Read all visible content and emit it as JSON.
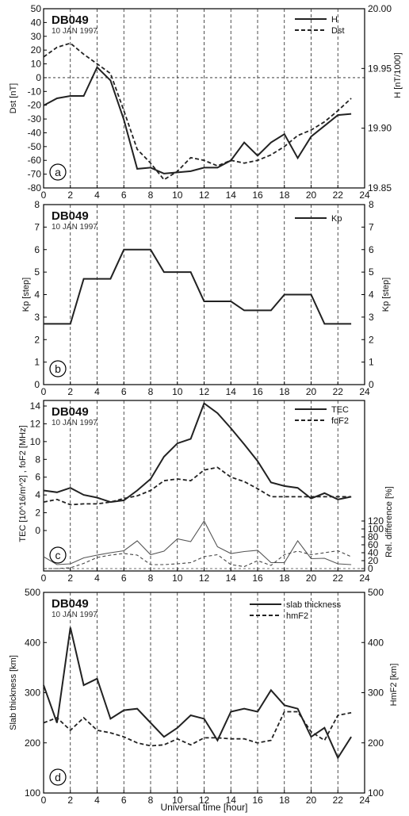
{
  "chart_data": [
    {
      "panel": "a",
      "type": "line",
      "station": "DB049",
      "date": "10 JAN 1997",
      "ylabel": "Dst [nT]",
      "ylabel_right": "H [nT/1000]",
      "ylim": [
        -80,
        50
      ],
      "ylim_right": [
        19.85,
        20.0
      ],
      "xlim": [
        0,
        24
      ],
      "xticks": [
        "0",
        "2",
        "4",
        "6",
        "8",
        "10",
        "12",
        "14",
        "16",
        "18",
        "20",
        "22",
        "24"
      ],
      "yticks": [
        "-80",
        "-70",
        "-60",
        "-50",
        "-40",
        "-30",
        "-20",
        "-10",
        "0",
        "10",
        "20",
        "30",
        "40",
        "50"
      ],
      "yticks_right": [
        "19.85",
        "19.90",
        "19.95",
        "20.00"
      ],
      "hline": 0,
      "series": [
        {
          "name": "H",
          "style": "solid",
          "axis": "right",
          "x": [
            0,
            1,
            2,
            3,
            4,
            5,
            6,
            7,
            8,
            9,
            10,
            11,
            12,
            13,
            14,
            15,
            16,
            17,
            18,
            19,
            20,
            21,
            22,
            23
          ],
          "values": [
            19.919,
            19.925,
            19.927,
            19.927,
            19.951,
            19.94,
            19.907,
            19.866,
            19.867,
            19.862,
            19.863,
            19.864,
            19.867,
            19.867,
            19.873,
            19.888,
            19.877,
            19.888,
            19.895,
            19.875,
            19.893,
            19.902,
            19.911,
            19.912
          ]
        },
        {
          "name": "Dst",
          "style": "dashed",
          "axis": "left",
          "x": [
            0,
            1,
            2,
            3,
            4,
            5,
            6,
            7,
            8,
            9,
            10,
            11,
            12,
            13,
            14,
            15,
            16,
            17,
            18,
            19,
            20,
            21,
            22,
            23
          ],
          "values": [
            15,
            22,
            25,
            17,
            10,
            3,
            -24,
            -52,
            -62,
            -74,
            -68,
            -58,
            -60,
            -64,
            -60,
            -62,
            -60,
            -56,
            -50,
            -42,
            -38,
            -32,
            -24,
            -15
          ]
        }
      ],
      "label": "a"
    },
    {
      "panel": "b",
      "type": "line",
      "station": "DB049",
      "date": "10 JAN 1997",
      "ylabel": "Kp [step]",
      "ylabel_right": "Kp [step]",
      "ylim": [
        0,
        8
      ],
      "xlim": [
        0,
        24
      ],
      "xticks": [
        "0",
        "2",
        "4",
        "6",
        "8",
        "10",
        "12",
        "14",
        "16",
        "18",
        "20",
        "22",
        "24"
      ],
      "yticks": [
        "0",
        "1",
        "2",
        "3",
        "4",
        "5",
        "6",
        "7",
        "8"
      ],
      "series": [
        {
          "name": "Kp",
          "style": "solid",
          "axis": "left",
          "x": [
            0,
            1,
            2,
            3,
            4,
            5,
            6,
            7,
            8,
            9,
            10,
            11,
            12,
            13,
            14,
            15,
            16,
            17,
            18,
            19,
            20,
            21,
            22,
            23
          ],
          "values": [
            2.7,
            2.7,
            2.7,
            4.7,
            4.7,
            4.7,
            6,
            6,
            6,
            5,
            5,
            5,
            3.7,
            3.7,
            3.7,
            3.3,
            3.3,
            3.3,
            4,
            4,
            4,
            2.7,
            2.7,
            2.7
          ]
        }
      ],
      "label": "b"
    },
    {
      "panel": "c",
      "type": "line",
      "station": "DB049",
      "date": "10 JAN 1997",
      "ylabel": "TEC [10^16/m^2] ,  foF2 [MHz]",
      "ylabel_right": "Rel. difference [%]",
      "xlim": [
        0,
        24
      ],
      "xticks": [
        "0",
        "2",
        "4",
        "6",
        "8",
        "10",
        "12",
        "14",
        "16",
        "18",
        "20",
        "22",
        "24"
      ],
      "yticks": [
        "0",
        "2",
        "4",
        "6",
        "8",
        "10",
        "12",
        "14"
      ],
      "yticks_right": [
        "0",
        "20",
        "40",
        "60",
        "80",
        "100",
        "120"
      ],
      "series": [
        {
          "name": "TEC",
          "style": "solid",
          "x": [
            0,
            1,
            2,
            3,
            4,
            5,
            6,
            7,
            8,
            9,
            10,
            11,
            12,
            13,
            14,
            15,
            16,
            17,
            18,
            19,
            20,
            21,
            22,
            23
          ],
          "values": [
            4.5,
            4.3,
            4.8,
            4.0,
            3.7,
            3.2,
            3.4,
            4.5,
            5.8,
            8.3,
            9.8,
            10.3,
            14.3,
            13.2,
            11.5,
            9.7,
            7.8,
            5.4,
            5.0,
            4.8,
            3.6,
            4.2,
            3.5,
            3.8
          ]
        },
        {
          "name": "foF2",
          "style": "dashed",
          "x": [
            0,
            1,
            2,
            3,
            4,
            5,
            6,
            7,
            8,
            9,
            10,
            11,
            12,
            13,
            14,
            15,
            16,
            17,
            18,
            19,
            20,
            21,
            22,
            23
          ],
          "values": [
            3.2,
            3.5,
            2.9,
            3.0,
            3.0,
            3.2,
            3.6,
            3.9,
            4.5,
            5.6,
            5.8,
            5.6,
            6.8,
            7.1,
            6.0,
            5.5,
            4.7,
            3.8,
            3.8,
            3.8,
            3.8,
            3.8,
            3.8,
            3.8
          ]
        },
        {
          "name": "Rel. difference TEC",
          "style": "solid-thin",
          "x": [
            0,
            1,
            2,
            3,
            4,
            5,
            6,
            7,
            8,
            9,
            10,
            11,
            12,
            13,
            14,
            15,
            16,
            17,
            18,
            19,
            20,
            21,
            22,
            23
          ],
          "values": [
            30,
            10,
            12,
            27,
            34,
            40,
            45,
            70,
            35,
            44,
            75,
            68,
            120,
            55,
            38,
            43,
            46,
            15,
            15,
            70,
            25,
            26,
            12,
            10
          ]
        },
        {
          "name": "Rel. difference foF2",
          "style": "dashed-thin",
          "x": [
            0,
            1,
            2,
            3,
            4,
            5,
            6,
            7,
            8,
            9,
            10,
            11,
            12,
            13,
            14,
            15,
            16,
            17,
            18,
            19,
            20,
            21,
            22,
            23
          ],
          "values": [
            0,
            0,
            2,
            13,
            28,
            34,
            38,
            34,
            10,
            10,
            12,
            15,
            30,
            35,
            10,
            5,
            20,
            8,
            35,
            44,
            35,
            40,
            45,
            30
          ]
        }
      ],
      "label": "c"
    },
    {
      "panel": "d",
      "type": "line",
      "station": "DB049",
      "date": "10 JAN 1997",
      "ylabel": "Slab thickness [km]",
      "ylabel_right": "HmF2 [km]",
      "ylim": [
        100,
        500
      ],
      "xlim": [
        0,
        24
      ],
      "xticks": [
        "0",
        "2",
        "4",
        "6",
        "8",
        "10",
        "12",
        "14",
        "16",
        "18",
        "20",
        "22",
        "24"
      ],
      "yticks": [
        "100",
        "200",
        "300",
        "400",
        "500"
      ],
      "xlabel": "Universal time [hour]",
      "series": [
        {
          "name": "slab thickness",
          "style": "solid",
          "x": [
            0,
            1,
            2,
            3,
            4,
            5,
            6,
            7,
            8,
            9,
            10,
            11,
            12,
            13,
            14,
            15,
            16,
            17,
            18,
            19,
            20,
            21,
            22,
            23
          ],
          "values": [
            315,
            240,
            430,
            315,
            328,
            248,
            265,
            268,
            240,
            212,
            230,
            255,
            248,
            205,
            262,
            268,
            262,
            305,
            275,
            268,
            212,
            230,
            170,
            212
          ]
        },
        {
          "name": "hmF2",
          "style": "dashed",
          "x": [
            0,
            1,
            2,
            3,
            4,
            5,
            6,
            7,
            8,
            9,
            10,
            11,
            12,
            13,
            14,
            15,
            16,
            17,
            18,
            19,
            20,
            21,
            22,
            23
          ],
          "values": [
            240,
            250,
            225,
            250,
            225,
            220,
            212,
            200,
            194,
            196,
            208,
            196,
            210,
            210,
            208,
            208,
            200,
            205,
            262,
            262,
            222,
            205,
            255,
            260
          ]
        }
      ],
      "label": "d"
    }
  ]
}
